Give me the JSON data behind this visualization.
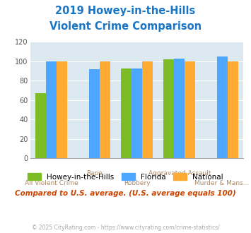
{
  "title_line1": "2019 Howey-in-the-Hills",
  "title_line2": "Violent Crime Comparison",
  "series": {
    "Howey-in-the-Hills": [
      67,
      null,
      93,
      102,
      null
    ],
    "Florida": [
      100,
      92,
      93,
      103,
      105
    ],
    "National": [
      100,
      100,
      100,
      100,
      100
    ]
  },
  "colors": {
    "Howey-in-the-Hills": "#7cbd25",
    "Florida": "#4da6ff",
    "National": "#ffaa33"
  },
  "ylim": [
    0,
    120
  ],
  "yticks": [
    0,
    20,
    40,
    60,
    80,
    100,
    120
  ],
  "upper_labels": [
    [
      0,
      "All Violent Crime"
    ],
    [
      2,
      "Rape"
    ],
    [
      3,
      "Aggravated Assault"
    ],
    [
      4,
      "Murder & Mans..."
    ]
  ],
  "lower_labels": [
    [
      0,
      "All Violent Crime"
    ],
    [
      2,
      "Robbery"
    ]
  ],
  "note": "Compared to U.S. average. (U.S. average equals 100)",
  "footer": "© 2025 CityRating.com - https://www.cityrating.com/crime-statistics/",
  "title_color": "#1a75c4",
  "bg_color": "#dce9f0",
  "note_color": "#cc4400",
  "footer_color": "#aaaaaa",
  "label_color_upper": "#cc9966",
  "label_color_lower": "#cc9966"
}
